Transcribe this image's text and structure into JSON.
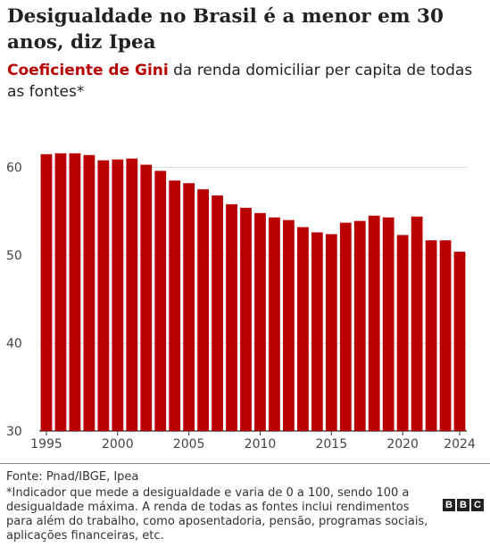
{
  "title": "Desigualdade no Brasil é a menor em 30 anos, diz Ipea",
  "subtitle_accent": "Coeficiente de Gini",
  "subtitle_rest": " da renda domiciliar per capita de todas as fontes*",
  "source": "Fonte: Pnad/IBGE, Ipea",
  "note": "*Indicador que mede a desigualdade e varia de 0 a 100, sendo 100 a desigualdade máxima. A renda de todas as fontes inclui rendimentos para além do trabalho, como aposentadoria, pensão, programas sociais, aplicações financeiras, etc.",
  "logo_letters": [
    "B",
    "B",
    "C"
  ],
  "colors": {
    "bar": "#b80000",
    "accent": "#b80000",
    "grid": "#dddddd",
    "axis": "#333333"
  },
  "chart_data": {
    "type": "bar",
    "x": [
      1995,
      1996,
      1997,
      1998,
      1999,
      2000,
      2001,
      2002,
      2003,
      2004,
      2005,
      2006,
      2007,
      2008,
      2009,
      2010,
      2011,
      2012,
      2013,
      2014,
      2015,
      2016,
      2017,
      2018,
      2019,
      2020,
      2021,
      2022,
      2023,
      2024
    ],
    "values": [
      61.5,
      61.6,
      61.6,
      61.4,
      60.8,
      60.9,
      61.0,
      60.3,
      59.6,
      58.5,
      58.2,
      57.5,
      56.8,
      55.8,
      55.4,
      54.8,
      54.3,
      54.0,
      53.2,
      52.6,
      52.4,
      53.7,
      53.9,
      54.5,
      54.3,
      52.3,
      54.4,
      51.7,
      51.7,
      50.4
    ],
    "xticks": [
      "1995",
      "2000",
      "2005",
      "2010",
      "2015",
      "2020",
      "2024"
    ],
    "yticks": [
      "30",
      "40",
      "50",
      "60"
    ],
    "ylim": [
      30,
      63
    ],
    "grid": true
  }
}
